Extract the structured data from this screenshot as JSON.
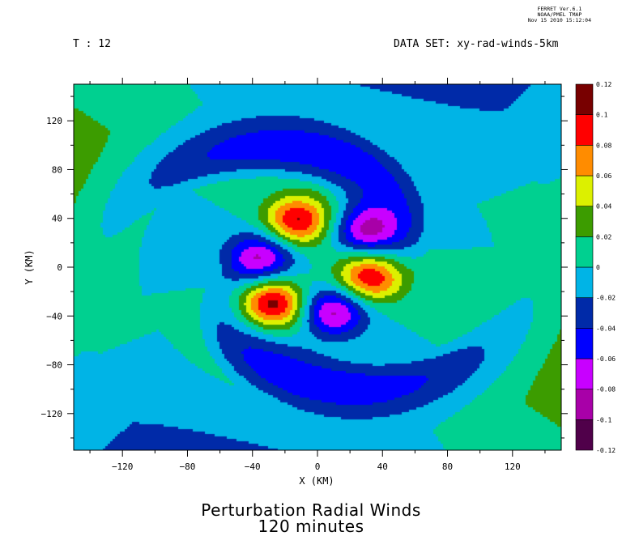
{
  "stamp": {
    "line1": "FERRET Ver.6.1",
    "line2": "NOAA/PMEL TMAP",
    "line3": "Nov 15 2010 15:12:04"
  },
  "header": {
    "time": "T : 12",
    "dataset": "DATA SET: xy-rad-winds-5km"
  },
  "caption": {
    "line1": "Perturbation Radial Winds",
    "line2": "120 minutes"
  },
  "chart_data": {
    "type": "heatmap",
    "xlabel": "X (KM)",
    "ylabel": "Y (KM)",
    "xlim": [
      -150,
      150
    ],
    "ylim": [
      -150,
      150
    ],
    "xticks": [
      -120,
      -80,
      -40,
      0,
      40,
      80,
      120
    ],
    "yticks": [
      -120,
      -80,
      -40,
      0,
      40,
      80,
      120
    ],
    "legend_placement": "right",
    "colorbar_levels": [
      -0.12,
      -0.1,
      -0.08,
      -0.06,
      -0.04,
      -0.02,
      0,
      0.02,
      0.04,
      0.06,
      0.08,
      0.1,
      0.12
    ],
    "colorbar_labels": [
      "-0.12",
      "-0.1",
      "-0.08",
      "-0.06",
      "-0.04",
      "-0.02",
      "0",
      "0.02",
      "0.04",
      "0.06",
      "0.08",
      "0.1",
      "0.12"
    ],
    "colors": [
      "#50004a",
      "#a800a8",
      "#c800ff",
      "#0000ff",
      "#002aa8",
      "#00b4e6",
      "#00d090",
      "#3c9c00",
      "#dcf000",
      "#ff8c00",
      "#ff0000",
      "#780000"
    ],
    "field": {
      "description_free": true,
      "lobes_positive": [
        {
          "x": -12,
          "y": 38,
          "amp": 0.105
        },
        {
          "x": 32,
          "y": -8,
          "amp": 0.105
        },
        {
          "x": -28,
          "y": -30,
          "amp": 0.115
        }
      ],
      "lobes_negative": [
        {
          "x": 30,
          "y": 30,
          "amp": -0.085
        },
        {
          "x": -35,
          "y": 8,
          "amp": -0.085
        },
        {
          "x": 10,
          "y": -36,
          "amp": -0.09
        }
      ],
      "spiral_amp": -0.035,
      "outer_amp": 0.03
    }
  }
}
